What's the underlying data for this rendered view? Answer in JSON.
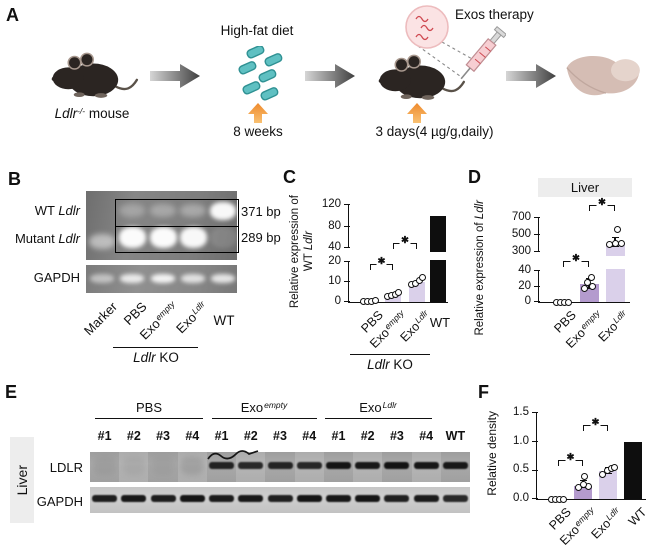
{
  "colors": {
    "purple_light": "#dad0ea",
    "purple_dark": "#b49bce",
    "bar_black": "#0e0e0e",
    "orange_hi": "#f9c172",
    "orange_lo": "#ee8a2d",
    "teal": "#5fc0c2",
    "teal_edge": "#2f9193",
    "exo_fill": "#fbe3e4",
    "exo_edge": "#edbcbe",
    "squiggle_red": "#cf4a52",
    "label_bg": "#ededed"
  },
  "panel_a": {
    "label": "A",
    "mouse_gene": "Ldlr",
    "mouse_sup": "-/-",
    "mouse_rest": " mouse",
    "diet": "High-fat diet",
    "diet_time": "8 weeks",
    "exos": "Exos therapy",
    "dose": "3 days(4 µg/g,daily)"
  },
  "panel_b": {
    "label": "B",
    "row_wt_prefix": "WT ",
    "row_wt_gene": "Ldlr",
    "row_mut_prefix": "Mutant ",
    "row_mut_gene": "Ldlr",
    "row_gapdh": "GAPDH",
    "size_wt": "371 bp",
    "size_mut": "289 bp",
    "lanes": [
      {
        "base": "Marker",
        "sup": ""
      },
      {
        "base": "PBS",
        "sup": ""
      },
      {
        "base": "Exo",
        "sup": "empty"
      },
      {
        "base": "Exo",
        "sup": "Ldlr"
      },
      {
        "base": "WT",
        "sup": ""
      }
    ],
    "group_gene": "Ldlr",
    "group_rest": " KO",
    "bands": {
      "wt_row": [
        0,
        0.26,
        0.3,
        0.33,
        0.95
      ],
      "mut_row": [
        0.5,
        0.97,
        0.97,
        0.95,
        0.12
      ],
      "gapdh_row": [
        0.5,
        0.82,
        0.9,
        0.75,
        0.8
      ]
    }
  },
  "chart_data": [
    {
      "panel": "C",
      "type": "bar",
      "ylabel_line1": "Relative expression of",
      "ylabel_line2_prefix": "WT ",
      "ylabel_line2_gene": "Ldlr",
      "ylim_lower": [
        0,
        20
      ],
      "ylim_upper": [
        40,
        120
      ],
      "upper_ticks": [
        {
          "v": 40,
          "label": "40"
        },
        {
          "v": 80,
          "label": "80"
        },
        {
          "v": 120,
          "label": "120"
        }
      ],
      "lower_ticks": [
        {
          "v": 0,
          "label": "0"
        },
        {
          "v": 10,
          "label": "10"
        },
        {
          "v": 20,
          "label": "20"
        }
      ],
      "categories": [
        {
          "base": "PBS",
          "sup": ""
        },
        {
          "base": "Exo",
          "sup": "empty"
        },
        {
          "base": "Exo",
          "sup": "Ldlr"
        },
        {
          "base": "WT",
          "sup": ""
        }
      ],
      "bars": [
        {
          "value": 0,
          "color": "none",
          "points": [
            0.4,
            0.5,
            0.5,
            0.6
          ]
        },
        {
          "value": 3.5,
          "color": "light",
          "points": [
            3,
            3.5,
            4,
            4.8
          ]
        },
        {
          "value": 10,
          "color": "light",
          "points": [
            9,
            9.5,
            11,
            12.5
          ]
        },
        {
          "value": 100,
          "color": "black",
          "points": []
        }
      ],
      "significance": [
        {
          "from": 0,
          "to": 1,
          "label": "✱"
        },
        {
          "from": 1,
          "to": 2,
          "label": "✱"
        }
      ],
      "group_gene": "Ldlr",
      "group_rest": " KO"
    },
    {
      "panel": "D",
      "type": "bar",
      "title": "Liver",
      "ylabel_prefix": "Relative expression of ",
      "ylabel_gene": "Ldlr",
      "ylim_lower": [
        0,
        40
      ],
      "ylim_upper": [
        300,
        700
      ],
      "upper_ticks": [
        {
          "v": 300,
          "label": "300"
        },
        {
          "v": 500,
          "label": "500"
        },
        {
          "v": 700,
          "label": "700"
        }
      ],
      "lower_ticks": [
        {
          "v": 0,
          "label": "0"
        },
        {
          "v": 20,
          "label": "20"
        },
        {
          "v": 40,
          "label": "40"
        }
      ],
      "categories": [
        {
          "base": "PBS",
          "sup": ""
        },
        {
          "base": "Exo",
          "sup": "empty"
        },
        {
          "base": "Exo",
          "sup": "Ldlr"
        }
      ],
      "bars": [
        {
          "value": 0,
          "color": "none",
          "points": [
            0,
            0,
            0,
            0
          ]
        },
        {
          "value": 23,
          "color": "dark",
          "points": [
            17,
            20,
            25,
            32
          ],
          "err": {
            "lo": 18,
            "hi": 30
          }
        },
        {
          "value": 400,
          "color": "light",
          "points": [
            385,
            395,
            400,
            560
          ],
          "err": {
            "lo": 368,
            "hi": 470
          }
        }
      ],
      "significance": [
        {
          "from": 0,
          "to": 1,
          "label": "✱"
        },
        {
          "from": 1,
          "to": 2,
          "label": "✱"
        }
      ]
    },
    {
      "panel": "F",
      "type": "bar",
      "ylabel": "Relative density",
      "ylim": [
        0,
        1.5
      ],
      "ticks": [
        {
          "v": 0,
          "label": "0.0"
        },
        {
          "v": 0.5,
          "label": "0.5"
        },
        {
          "v": 1,
          "label": "1.0"
        },
        {
          "v": 1.5,
          "label": "1.5"
        }
      ],
      "categories": [
        {
          "base": "PBS",
          "sup": ""
        },
        {
          "base": "Exo",
          "sup": "empty"
        },
        {
          "base": "Exo",
          "sup": "Ldlr"
        },
        {
          "base": "WT",
          "sup": ""
        }
      ],
      "bars": [
        {
          "value": 0,
          "color": "none",
          "points": [
            0,
            0,
            0,
            0
          ]
        },
        {
          "value": 0.23,
          "color": "dark",
          "points": [
            0.2,
            0.22,
            0.25,
            0.4
          ],
          "err": {
            "lo": 0.2,
            "hi": 0.32
          }
        },
        {
          "value": 0.48,
          "color": "light",
          "points": [
            0.42,
            0.5,
            0.53,
            0.55
          ],
          "err": {
            "lo": 0.44,
            "hi": 0.55
          }
        },
        {
          "value": 1,
          "color": "black",
          "points": []
        }
      ],
      "significance": [
        {
          "from": 0,
          "to": 1,
          "label": "✱"
        },
        {
          "from": 1,
          "to": 2,
          "label": "✱"
        }
      ]
    }
  ],
  "panel_e": {
    "label": "E",
    "tissue": "Liver",
    "groups": [
      {
        "base": "PBS",
        "sup": ""
      },
      {
        "base": "Exo",
        "sup": "empty"
      },
      {
        "base": "Exo",
        "sup": "Ldlr"
      }
    ],
    "lane_numbers": [
      "#1",
      "#2",
      "#3",
      "#4",
      "#1",
      "#2",
      "#3",
      "#4",
      "#1",
      "#2",
      "#3",
      "#4",
      "WT"
    ],
    "row_ldlr": "LDLR",
    "row_gapdh": "GAPDH",
    "ldlr_bands": [
      0.1,
      0.1,
      0.08,
      0.18,
      0.72,
      0.66,
      0.7,
      0.68,
      0.9,
      0.86,
      0.92,
      0.88,
      0.85
    ],
    "gapdh_bands": [
      0.8,
      0.85,
      0.8,
      0.88,
      0.82,
      0.85,
      0.78,
      0.88,
      0.85,
      0.88,
      0.78,
      0.82,
      0.7
    ]
  }
}
